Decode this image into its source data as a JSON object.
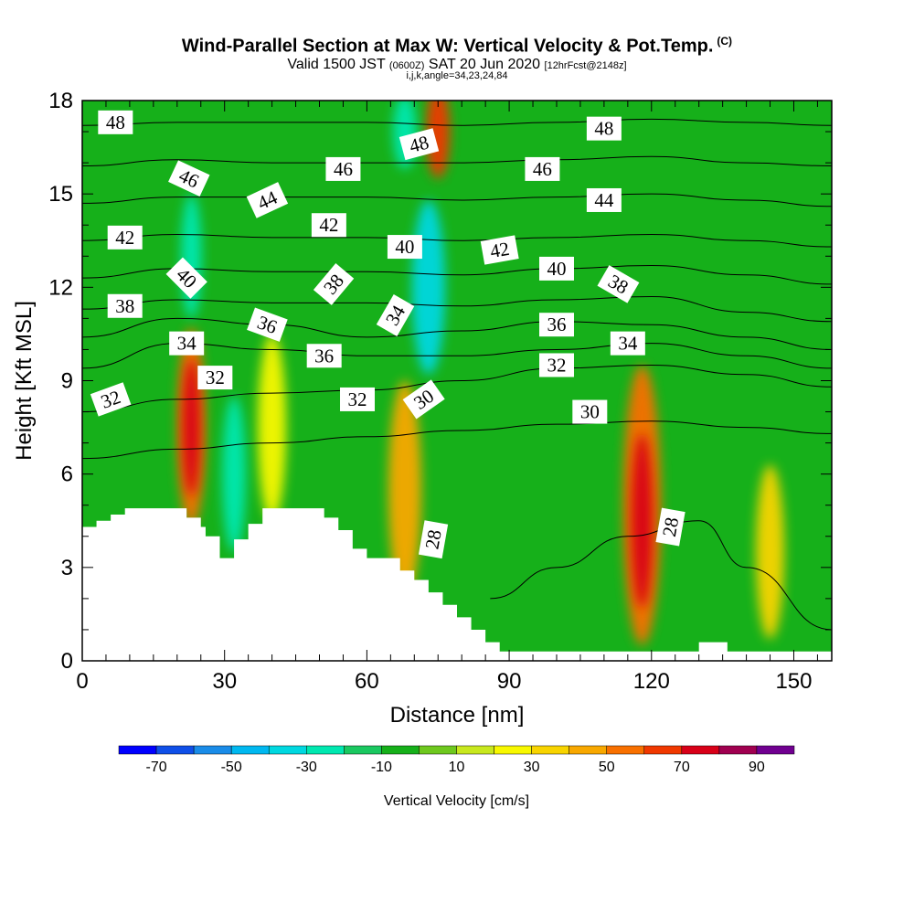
{
  "header": {
    "title": "Wind-Parallel Section at Max W: Vertical Velocity & Pot.Temp.",
    "copyright": "(C)",
    "subtitle_a": "Valid 1500 JST",
    "subtitle_b": "(0600Z)",
    "subtitle_c": "SAT 20 Jun 2020",
    "subtitle_d": "[12hrFcst@2148z]",
    "subtitle2": "i,j,k,angle=34,23,24,84"
  },
  "chart_data": {
    "type": "heatmap",
    "xlabel": "Distance [nm]",
    "ylabel": "Height [Kft MSL]",
    "xlim": [
      0,
      158
    ],
    "ylim": [
      0,
      18
    ],
    "x_ticks": [
      0,
      30,
      60,
      90,
      120,
      150
    ],
    "x_tick_labels": [
      "0",
      "30",
      "60",
      "90",
      "120",
      "150"
    ],
    "y_ticks": [
      0,
      3,
      6,
      9,
      12,
      15,
      18
    ],
    "y_tick_labels": [
      "0",
      "3",
      "6",
      "9",
      "12",
      "15",
      "18"
    ],
    "background_value": -10,
    "cells": [
      {
        "x": 23,
        "y": 7.5,
        "rx": 3,
        "ry": 3.2,
        "v": 50
      },
      {
        "x": 23,
        "y": 7.5,
        "rx": 1.8,
        "ry": 2.2,
        "v": 70
      },
      {
        "x": 40,
        "y": 7.5,
        "rx": 3,
        "ry": 3,
        "v": 20
      },
      {
        "x": 68,
        "y": 5.5,
        "rx": 3.5,
        "ry": 3.5,
        "v": 40
      },
      {
        "x": 118,
        "y": 5,
        "rx": 4,
        "ry": 4.5,
        "v": 50
      },
      {
        "x": 118,
        "y": 4.5,
        "rx": 2.2,
        "ry": 2.8,
        "v": 70
      },
      {
        "x": 145,
        "y": 3.5,
        "rx": 3,
        "ry": 2.8,
        "v": 30
      },
      {
        "x": 75,
        "y": 17,
        "rx": 2.5,
        "ry": 1.5,
        "v": 60
      },
      {
        "x": 32,
        "y": 6,
        "rx": 2.5,
        "ry": 2.5,
        "v": -30
      },
      {
        "x": 73,
        "y": 12,
        "rx": 3.5,
        "ry": 2.8,
        "v": -40
      },
      {
        "x": 23,
        "y": 13,
        "rx": 2.2,
        "ry": 2,
        "v": -30
      },
      {
        "x": 68,
        "y": 17,
        "rx": 2.5,
        "ry": 1.2,
        "v": -30
      }
    ],
    "contours": [
      {
        "level": 28,
        "x": [
          86,
          100,
          115,
          130,
          140,
          158
        ],
        "y": [
          2,
          3,
          4,
          4.5,
          3,
          1
        ]
      },
      {
        "level": 30,
        "x": [
          0,
          20,
          40,
          60,
          80,
          100,
          120,
          140,
          158
        ],
        "y": [
          6.5,
          6.8,
          7,
          7.2,
          7.4,
          7.6,
          7.7,
          7.5,
          7.3
        ]
      },
      {
        "level": 32,
        "x": [
          0,
          20,
          40,
          60,
          80,
          100,
          120,
          140,
          158
        ],
        "y": [
          8,
          8.4,
          8.6,
          8.7,
          9,
          9.4,
          9.5,
          9.2,
          8.8
        ]
      },
      {
        "level": 34,
        "x": [
          0,
          20,
          40,
          60,
          80,
          100,
          120,
          140,
          158
        ],
        "y": [
          9.4,
          10.2,
          10,
          9.8,
          9.8,
          10,
          10.2,
          9.8,
          9.4
        ]
      },
      {
        "level": 36,
        "x": [
          0,
          20,
          40,
          60,
          80,
          100,
          120,
          140,
          158
        ],
        "y": [
          10.4,
          11,
          10.8,
          10.4,
          10.6,
          10.9,
          10.8,
          10.4,
          10
        ]
      },
      {
        "level": 38,
        "x": [
          0,
          20,
          40,
          60,
          80,
          100,
          120,
          140,
          158
        ],
        "y": [
          11.3,
          11.6,
          11.5,
          11.5,
          11.4,
          11.6,
          11.7,
          11.2,
          10.9
        ]
      },
      {
        "level": 40,
        "x": [
          0,
          20,
          40,
          60,
          80,
          100,
          120,
          140,
          158
        ],
        "y": [
          12.3,
          12.6,
          12.5,
          12.5,
          12.4,
          12.6,
          12.7,
          12.4,
          12.1
        ]
      },
      {
        "level": 42,
        "x": [
          0,
          20,
          40,
          60,
          80,
          100,
          120,
          140,
          158
        ],
        "y": [
          13.5,
          13.7,
          13.6,
          13.6,
          13.5,
          13.6,
          13.7,
          13.5,
          13.3
        ]
      },
      {
        "level": 44,
        "x": [
          0,
          20,
          40,
          60,
          80,
          100,
          120,
          140,
          158
        ],
        "y": [
          14.7,
          14.9,
          14.9,
          14.9,
          14.8,
          14.9,
          15,
          14.8,
          14.6
        ]
      },
      {
        "level": 46,
        "x": [
          0,
          20,
          40,
          60,
          80,
          100,
          120,
          140,
          158
        ],
        "y": [
          15.9,
          16.1,
          16,
          16,
          16,
          16.1,
          16.2,
          16,
          15.9
        ]
      },
      {
        "level": 48,
        "x": [
          0,
          20,
          40,
          60,
          80,
          100,
          120,
          140,
          158
        ],
        "y": [
          17.2,
          17.3,
          17.3,
          17.3,
          17.2,
          17.3,
          17.4,
          17.3,
          17.2
        ]
      }
    ],
    "contour_labels": [
      {
        "text": "48",
        "x": 7,
        "y": 17.3,
        "rot": 0
      },
      {
        "text": "46",
        "x": 22.5,
        "y": 15.5,
        "rot": 25
      },
      {
        "text": "44",
        "x": 39,
        "y": 14.8,
        "rot": -25
      },
      {
        "text": "46",
        "x": 55,
        "y": 15.8,
        "rot": 0
      },
      {
        "text": "48",
        "x": 71,
        "y": 16.6,
        "rot": -15
      },
      {
        "text": "46",
        "x": 97,
        "y": 15.8,
        "rot": 0
      },
      {
        "text": "48",
        "x": 110,
        "y": 17.1,
        "rot": 0
      },
      {
        "text": "44",
        "x": 110,
        "y": 14.8,
        "rot": 0
      },
      {
        "text": "42",
        "x": 9,
        "y": 13.6,
        "rot": 0
      },
      {
        "text": "42",
        "x": 52,
        "y": 14,
        "rot": 0
      },
      {
        "text": "40",
        "x": 68,
        "y": 13.3,
        "rot": 0
      },
      {
        "text": "42",
        "x": 88,
        "y": 13.2,
        "rot": -10
      },
      {
        "text": "40",
        "x": 100,
        "y": 12.6,
        "rot": 0
      },
      {
        "text": "40",
        "x": 22,
        "y": 12.3,
        "rot": 45
      },
      {
        "text": "38",
        "x": 53,
        "y": 12.1,
        "rot": -50
      },
      {
        "text": "38",
        "x": 113,
        "y": 12.1,
        "rot": 30
      },
      {
        "text": "38",
        "x": 9,
        "y": 11.4,
        "rot": 0
      },
      {
        "text": "36",
        "x": 39,
        "y": 10.8,
        "rot": 20
      },
      {
        "text": "34",
        "x": 66,
        "y": 11.1,
        "rot": -60
      },
      {
        "text": "36",
        "x": 100,
        "y": 10.8,
        "rot": 0
      },
      {
        "text": "34",
        "x": 22,
        "y": 10.2,
        "rot": 0
      },
      {
        "text": "36",
        "x": 51,
        "y": 9.8,
        "rot": 0
      },
      {
        "text": "34",
        "x": 115,
        "y": 10.2,
        "rot": 0
      },
      {
        "text": "32",
        "x": 28,
        "y": 9.1,
        "rot": 0
      },
      {
        "text": "32",
        "x": 100,
        "y": 9.5,
        "rot": 0
      },
      {
        "text": "32",
        "x": 6,
        "y": 8.4,
        "rot": -20
      },
      {
        "text": "32",
        "x": 58,
        "y": 8.4,
        "rot": 0
      },
      {
        "text": "30",
        "x": 72,
        "y": 8.4,
        "rot": -35
      },
      {
        "text": "30",
        "x": 107,
        "y": 8,
        "rot": 0
      },
      {
        "text": "28",
        "x": 74,
        "y": 3.9,
        "rot": -80
      },
      {
        "text": "28",
        "x": 124,
        "y": 4.3,
        "rot": -80
      }
    ],
    "terrain": {
      "x": [
        0,
        0,
        3,
        3,
        6,
        6,
        9,
        9,
        22,
        22,
        25,
        25,
        26,
        26,
        29,
        29,
        32,
        32,
        35,
        35,
        38,
        38,
        51,
        51,
        54,
        54,
        57,
        57,
        60,
        60,
        67,
        67,
        70,
        70,
        73,
        73,
        76,
        76,
        79,
        79,
        82,
        82,
        85,
        85,
        88,
        88,
        89,
        89,
        130,
        130,
        136,
        136,
        139,
        139,
        158,
        158
      ],
      "y": [
        0,
        4.3,
        4.3,
        4.5,
        4.5,
        4.7,
        4.7,
        4.9,
        4.9,
        4.6,
        4.6,
        4.3,
        4.3,
        4.0,
        4.0,
        3.3,
        3.3,
        3.9,
        3.9,
        4.4,
        4.4,
        4.9,
        4.9,
        4.6,
        4.6,
        4.2,
        4.2,
        3.6,
        3.6,
        3.3,
        3.3,
        2.9,
        2.9,
        2.6,
        2.6,
        2.2,
        2.2,
        1.8,
        1.8,
        1.4,
        1.4,
        1.0,
        1.0,
        0.6,
        0.6,
        0.3,
        0.3,
        0.3,
        0.3,
        0.6,
        0.6,
        0.3,
        0.3,
        0.3,
        0.3,
        0
      ]
    },
    "colorbar": {
      "label": "Vertical Velocity [cm/s]",
      "bounds": [
        -80,
        -70,
        -60,
        -50,
        -40,
        -30,
        -20,
        -10,
        0,
        10,
        20,
        30,
        40,
        50,
        60,
        70,
        80,
        90
      ],
      "colors": [
        "#0000ff",
        "#0f4fe8",
        "#1a8ce8",
        "#00b8f0",
        "#00d8e0",
        "#00e8b0",
        "#1ac860",
        "#16b01a",
        "#6ec81e",
        "#c8e81e",
        "#f8f800",
        "#f8d400",
        "#f8a800",
        "#f87000",
        "#f03800",
        "#d80018",
        "#a00050",
        "#700090"
      ],
      "tick_values": [
        -70,
        -50,
        -30,
        -10,
        10,
        30,
        50,
        70,
        90
      ],
      "tick_labels": [
        "-70",
        "-50",
        "-30",
        "-10",
        "10",
        "30",
        "50",
        "70",
        "90"
      ]
    }
  }
}
